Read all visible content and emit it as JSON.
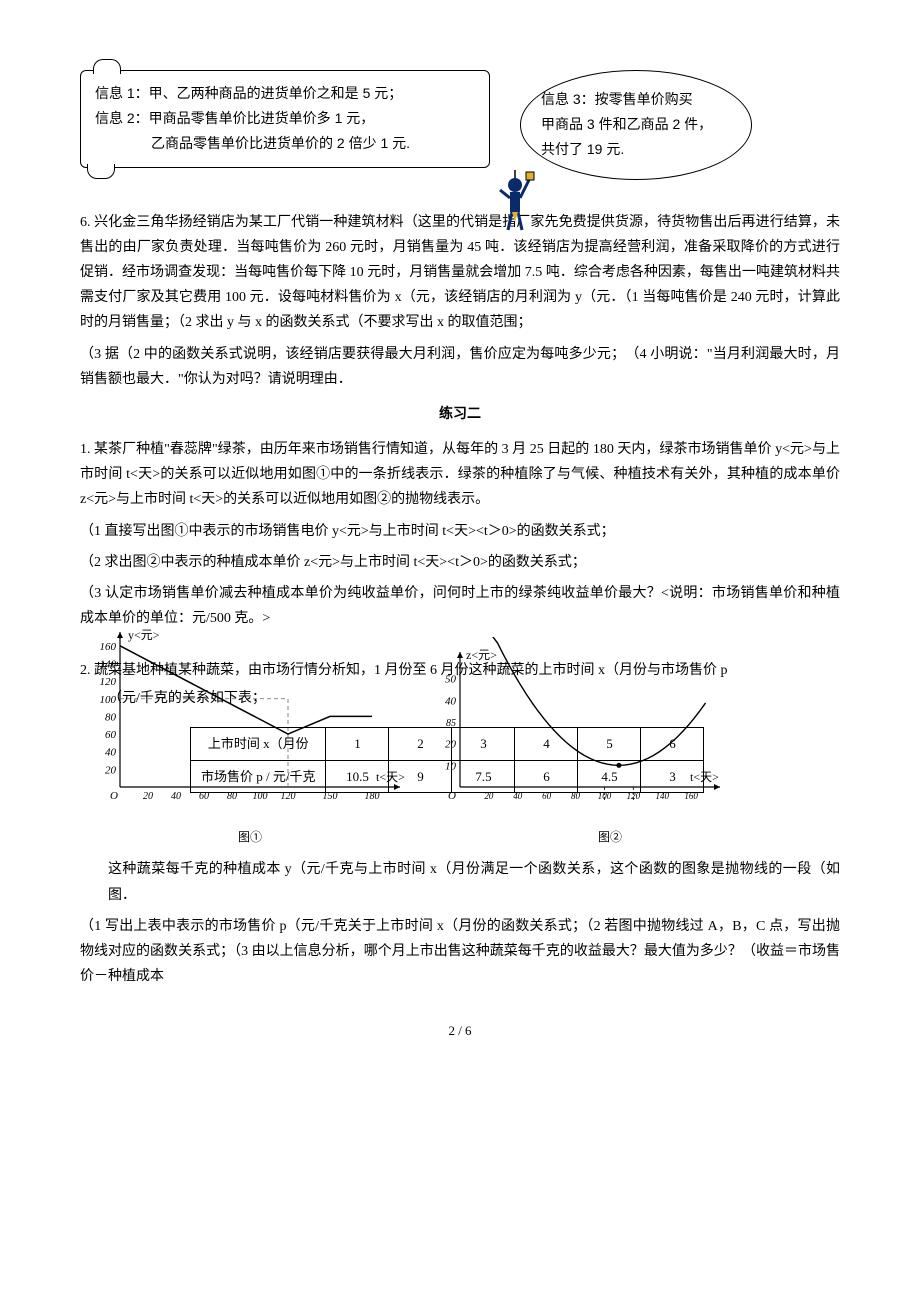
{
  "info_boxes": {
    "box1_line1": "信息 1：甲、乙两种商品的进货单价之和是 5 元；",
    "box1_line2": "信息 2：甲商品零售单价比进货单价多 1 元，",
    "box1_line3": "乙商品零售单价比进货单价的 2 倍少 1 元.",
    "bubble_line1": "信息 3：按零售单价购买",
    "bubble_line2": "甲商品 3 件和乙商品 2 件，",
    "bubble_line3": "共付了 19 元."
  },
  "q6": {
    "p1": "6. 兴化金三角华扬经销店为某工厂代销一种建筑材料（这里的代销是指厂家先免费提供货源，待货物售出后再进行结算，未售出的由厂家负责处理．当每吨售价为 260 元时，月销售量为 45 吨．该经销店为提高经营利润，准备采取降价的方式进行促销．经市场调查发现：当每吨售价每下降 10 元时，月销售量就会增加 7.5 吨．综合考虑各种因素，每售出一吨建筑材料共需支付厂家及其它费用 100 元．设每吨材料售价为 x（元，该经销店的月利润为 y（元．（1 当每吨售价是 240 元时，计算此时的月销售量；（2 求出 y 与 x 的函数关系式（不要求写出 x 的取值范围；",
    "p2": "（3 据（2 中的函数关系式说明，该经销店要获得最大月利润，售价应定为每吨多少元；　（4 小明说：\"当月利润最大时，月销售额也最大．\"你认为对吗？请说明理由．"
  },
  "section2_title": "练习二",
  "q1": {
    "p1": "1. 某茶厂种植\"春蕊牌\"绿茶，由历年来市场销售行情知道，从每年的 3 月 25 日起的 180 天内，绿茶市场销售单价 y<元>与上市时间 t<天>的关系可以近似地用如图①中的一条折线表示．绿茶的种植除了与气候、种植技术有关外，其种植的成本单价 z<元>与上市时间 t<天>的关系可以近似地用如图②的抛物线表示。",
    "p2": "（1 直接写出图①中表示的市场销售电价 y<元>与上市时间 t<天><t＞0>的函数关系式；",
    "p3": "（2 求出图②中表示的种植成本单价 z<元>与上市时间 t<天><t＞0>的函数关系式；",
    "p4": "（3 认定市场销售单价减去种植成本单价为纯收益单价，问何时上市的绿茶纯收益单价最大？<说明：市场销售单价和种植成本单价的单位：元/500 克。>"
  },
  "q2": {
    "p1_pre": "2. 蔬菜基地种植某种蔬菜，由市场行情分析知，1 月份至 6 月份这种蔬菜的上市时间 x（月份与市场售价 p",
    "p1_post": "（元/千克的关系如下表；",
    "p2": "这种蔬菜每千克的种植成本 y（元/千克与上市时间 x（月份满足一个函数关系，这个函数的图象是抛物线的一段（如图．",
    "p3": "（1 写出上表中表示的市场售价 p（元/千克关于上市时间 x（月份的函数关系式；（2 若图中抛物线过 A，B，C 点，写出抛物线对应的函数关系式；（3 由以上信息分析，哪个月上市出售这种蔬菜每千克的收益最大？最大值为多少？（收益＝市场售价－种植成本"
  },
  "table": {
    "header_label": "上市时间 x（月份",
    "price_label": "市场售价 p / 元/千克",
    "cols": [
      "1",
      "2",
      "3",
      "4",
      "5",
      "6"
    ],
    "vals": [
      "10.5",
      "9",
      "7.5",
      "6",
      "4.5",
      "3"
    ]
  },
  "chart1": {
    "ylabel": "y<元>",
    "xlabel": "t<天>",
    "yticks": [
      "160",
      "140",
      "120",
      "100",
      "80",
      "60",
      "40",
      "20"
    ],
    "xticks": [
      "20",
      "40",
      "60",
      "80",
      "100",
      "120",
      "150",
      "180"
    ],
    "yvals": [
      160,
      140,
      120,
      100,
      80,
      60,
      40,
      20
    ],
    "xvals": [
      20,
      40,
      60,
      80,
      100,
      120,
      150,
      180
    ],
    "origin_label": "O",
    "caption": "图①",
    "line_color": "#000000",
    "grid_color": "#666666",
    "polyline_pts": [
      [
        0,
        160
      ],
      [
        120,
        60
      ],
      [
        150,
        80
      ],
      [
        180,
        80
      ]
    ],
    "xmax": 200,
    "ymax": 170
  },
  "chart2": {
    "ylabel": "z<元>",
    "xlabel": "t<天>",
    "yticks": [
      "50",
      "40",
      "20",
      "10"
    ],
    "xticks": [
      "20",
      "40",
      "60",
      "80",
      "100",
      "120",
      "140",
      "160"
    ],
    "yvals": [
      50,
      40,
      20,
      10
    ],
    "xvals": [
      20,
      40,
      60,
      80,
      100,
      120,
      140,
      160
    ],
    "special_y": "85",
    "origin_label": "O",
    "caption": "图②",
    "line_color": "#000000",
    "xmax": 180,
    "ymax": 60,
    "parabola_vertex_x": 110,
    "parabola_vertex_y": 10,
    "parabola_a": 0.008
  },
  "mascot": {
    "body_color": "#0a2a6b",
    "accent_color": "#e0b030"
  },
  "footer": "2 / 6"
}
